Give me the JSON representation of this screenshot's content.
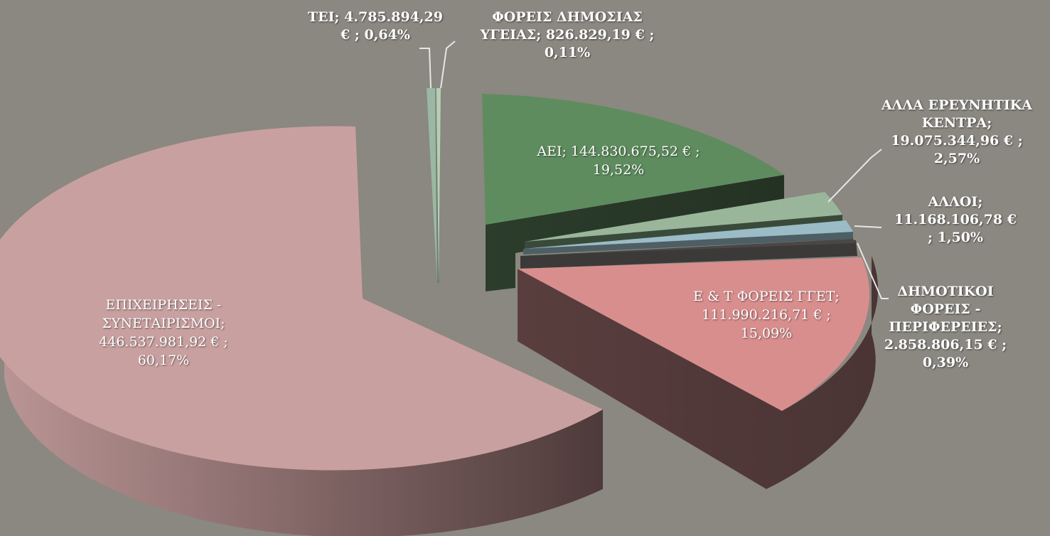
{
  "chart_data": {
    "type": "pie",
    "style": "3d-exploded",
    "legend": "none",
    "colors": {
      "background": "#8a8880"
    },
    "slices": [
      {
        "name": "ΑΕΙ",
        "value": 144830675.52,
        "value_label": "144.830.675,52 €",
        "percent_label": "19,52%",
        "percent": 19.52,
        "color": "#5e8c5e"
      },
      {
        "name": "ΑΛΛΑ ΕΡΕΥΝΗΤΙΚΑ ΚΕΝΤΡΑ",
        "value": 19075344.96,
        "value_label": "19.075.344,96 €",
        "percent_label": "2,57%",
        "percent": 2.57,
        "color": "#9ab69a"
      },
      {
        "name": "ΑΛΛΟΙ",
        "value": 11168106.78,
        "value_label": "11.168.106,78 €",
        "percent_label": "1,50%",
        "percent": 1.5,
        "color": "#9bbcc6"
      },
      {
        "name": "ΔΗΜΟΤΙΚΟΙ ΦΟΡΕΙΣ - ΠΕΡΙΦΕΡΕΙΕΣ",
        "value": 2858806.15,
        "value_label": "2.858.806,15 €",
        "percent_label": "0,39%",
        "percent": 0.39,
        "color": "#4a4744"
      },
      {
        "name": "Ε & Τ ΦΟΡΕΙΣ ΓΓΕΤ",
        "value": 111990216.71,
        "value_label": "111.990.216,71 €",
        "percent_label": "15,09%",
        "percent": 15.09,
        "color": "#d98e8e"
      },
      {
        "name": "ΕΠΙΧΕΙΡΗΣΕΙΣ - ΣΥΝΕΤΑΙΡΙΣΜΟΙ",
        "value": 446537981.92,
        "value_label": "446.537.981,92 €",
        "percent_label": "60,17%",
        "percent": 60.17,
        "color": "#c9a0a0"
      },
      {
        "name": "ΤΕΙ",
        "value": 4785894.29,
        "value_label": "4.785.894,29 €",
        "percent_label": "0,64%",
        "percent": 0.64,
        "color": "#9ab8a4"
      },
      {
        "name": "ΦΟΡΕΙΣ ΔΗΜΟΣΙΑΣ ΥΓΕΙΑΣ",
        "value": 826829.19,
        "value_label": "826.829,19 €",
        "percent_label": "0,11%",
        "percent": 0.11,
        "color": "#b4d0b4"
      }
    ],
    "labels": {
      "aei": "ΑΕΙ;  144.830.675,52 € ;\n19,52%",
      "alla_kentra": "ΑΛΛΑ ΕΡΕΥΝΗΤΙΚΑ\nΚΕΝΤΡΑ;\n19.075.344,96 € ;\n2,57%",
      "alloi": "ΑΛΛΟΙ;\n11.168.106,78 €\n; 1,50%",
      "dimotikoi": "ΔΗΜΟΤΙΚΟΙ\nΦΟΡΕΙΣ -\nΠΕΡΙΦΕΡΕΙΕΣ;\n2.858.806,15 € ;\n0,39%",
      "gget": "Ε & Τ ΦΟΡΕΙΣ ΓΓΕΤ;\n111.990.216,71 € ;\n15,09%",
      "epixeiriseis": "ΕΠΙΧΕΙΡΗΣΕΙΣ -\nΣΥΝΕΤΑΙΡΙΣΜΟΙ;\n446.537.981,92 € ;\n60,17%",
      "tei": "ΤΕΙ;  4.785.894,29\n€ ; 0,64%",
      "ygeia": "ΦΟΡΕΙΣ ΔΗΜΟΣΙΑΣ\nΥΓΕΙΑΣ;  826.829,19 € ;\n0,11%"
    }
  }
}
